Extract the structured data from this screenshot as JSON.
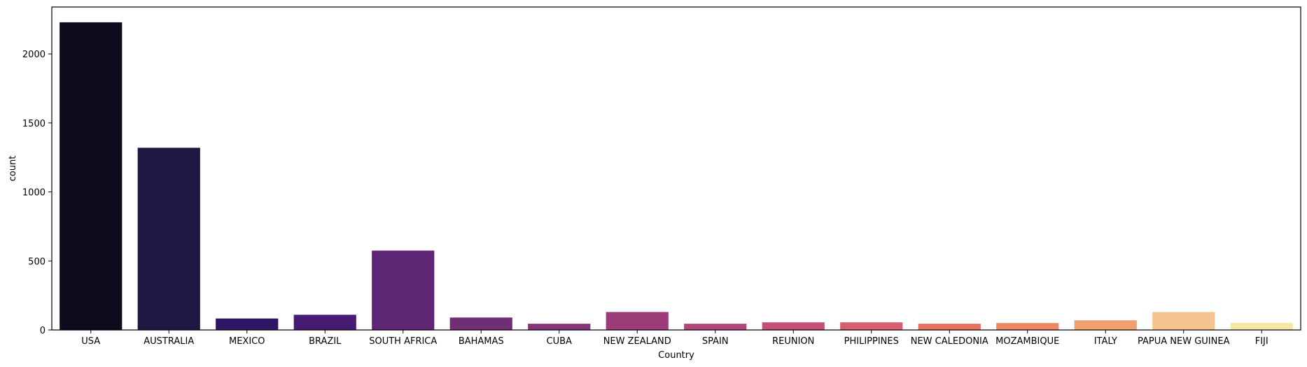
{
  "chart_data": {
    "type": "bar",
    "xlabel": "Country",
    "ylabel": "count",
    "categories": [
      "USA",
      "AUSTRALIA",
      "MEXICO",
      "BRAZIL",
      "SOUTH AFRICA",
      "BAHAMAS",
      "CUBA",
      "NEW ZEALAND",
      "SPAIN",
      "REUNION",
      "PHILIPPINES",
      "NEW CALEDONIA",
      "MOZAMBIQUE",
      "ITALY",
      "PAPUA NEW GUINEA",
      "FIJI"
    ],
    "values": [
      2229,
      1320,
      83,
      110,
      575,
      90,
      45,
      130,
      45,
      55,
      55,
      45,
      50,
      70,
      130,
      50
    ],
    "colors": [
      "#0e0b1f",
      "#1f1644",
      "#2e1662",
      "#461c73",
      "#5e2674",
      "#702f75",
      "#843577",
      "#9c3d7a",
      "#b2447b",
      "#c64e77",
      "#d95d6c",
      "#e6705f",
      "#ed8663",
      "#f0a16f",
      "#f4c38f",
      "#f6e5a6"
    ],
    "ylim": [
      0,
      2340
    ],
    "yticks": [
      0,
      500,
      1000,
      1500,
      2000
    ],
    "grid": false,
    "legend": "none"
  }
}
